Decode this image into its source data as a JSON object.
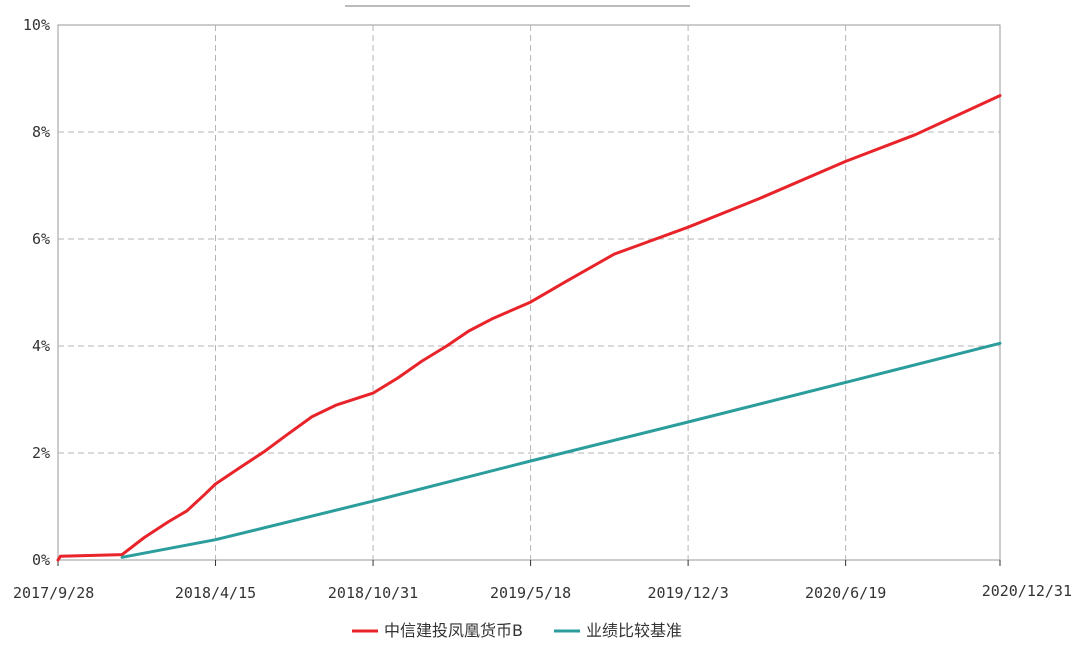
{
  "chart_data": {
    "type": "line",
    "title": "",
    "xlabel": "",
    "ylabel": "",
    "x_ticks": [
      "2017/9/28",
      "2018/4/15",
      "2018/10/31",
      "2019/5/18",
      "2019/12/3",
      "2020/6/19",
      "2020/12/31"
    ],
    "y_ticks": [
      "0%",
      "2%",
      "4%",
      "6%",
      "8%",
      "10%"
    ],
    "ylim": [
      0,
      10
    ],
    "y_unit": "%",
    "grid": true,
    "legend_position": "bottom",
    "series": [
      {
        "name": "中信建投凤凰货币B",
        "color": "#e8242a",
        "points": [
          [
            "2017/9/28",
            0.0
          ],
          [
            "2017/10/1",
            0.07
          ],
          [
            "2017/12/18",
            0.1
          ],
          [
            "2018/1/15",
            0.42
          ],
          [
            "2018/2/15",
            0.72
          ],
          [
            "2018/3/10",
            0.92
          ],
          [
            "2018/4/1",
            1.22
          ],
          [
            "2018/4/15",
            1.42
          ],
          [
            "2018/5/15",
            1.72
          ],
          [
            "2018/6/15",
            2.02
          ],
          [
            "2018/7/15",
            2.35
          ],
          [
            "2018/8/15",
            2.68
          ],
          [
            "2018/9/15",
            2.9
          ],
          [
            "2018/10/31",
            3.12
          ],
          [
            "2018/12/1",
            3.4
          ],
          [
            "2019/1/1",
            3.72
          ],
          [
            "2019/2/1",
            4.0
          ],
          [
            "2019/3/1",
            4.28
          ],
          [
            "2019/4/1",
            4.52
          ],
          [
            "2019/5/18",
            4.82
          ],
          [
            "2019/7/1",
            5.2
          ],
          [
            "2019/9/1",
            5.72
          ],
          [
            "2019/12/3",
            6.22
          ],
          [
            "2020/3/1",
            6.75
          ],
          [
            "2020/6/19",
            7.45
          ],
          [
            "2020/9/15",
            7.95
          ],
          [
            "2020/12/31",
            8.68
          ]
        ]
      },
      {
        "name": "业绩比较基准",
        "color": "#2a9d9c",
        "points": [
          [
            "2017/12/18",
            0.05
          ],
          [
            "2018/4/15",
            0.38
          ],
          [
            "2018/10/31",
            1.1
          ],
          [
            "2019/5/18",
            1.85
          ],
          [
            "2019/12/3",
            2.58
          ],
          [
            "2020/6/19",
            3.32
          ],
          [
            "2020/12/31",
            4.05
          ]
        ]
      }
    ]
  }
}
